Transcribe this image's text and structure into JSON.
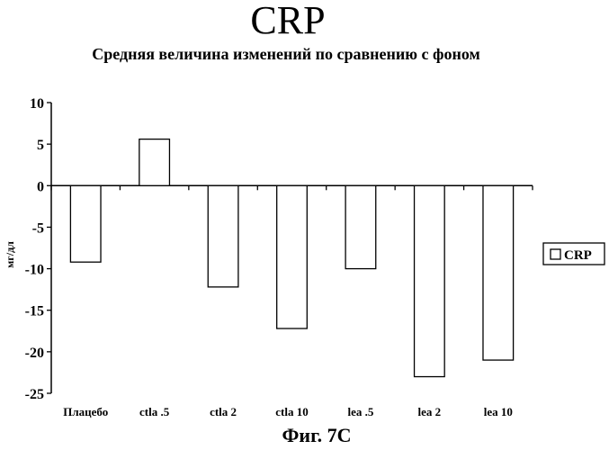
{
  "chart_data": {
    "type": "bar",
    "title": "CRP",
    "subtitle": "Средняя величина изменений по сравнению с фоном",
    "xlabel": "",
    "ylabel": "мг/дл",
    "ylim": [
      -25,
      10
    ],
    "yticks": [
      10,
      5,
      0,
      -5,
      -10,
      -15,
      -20,
      -25
    ],
    "categories": [
      "Плацебо",
      "ctla .5",
      "ctla 2",
      "ctla 10",
      "lea .5",
      "lea 2",
      "lea 10"
    ],
    "series": [
      {
        "name": "CRP",
        "values": [
          -9.2,
          5.6,
          -12.2,
          -17.2,
          -10.0,
          -23.0,
          -21.0
        ]
      }
    ],
    "legend": {
      "position": "right",
      "entries": [
        "CRP"
      ]
    },
    "bar_fill": "#ffffff",
    "bar_stroke": "#000000",
    "grid": false
  },
  "caption": "Фиг. 7C"
}
